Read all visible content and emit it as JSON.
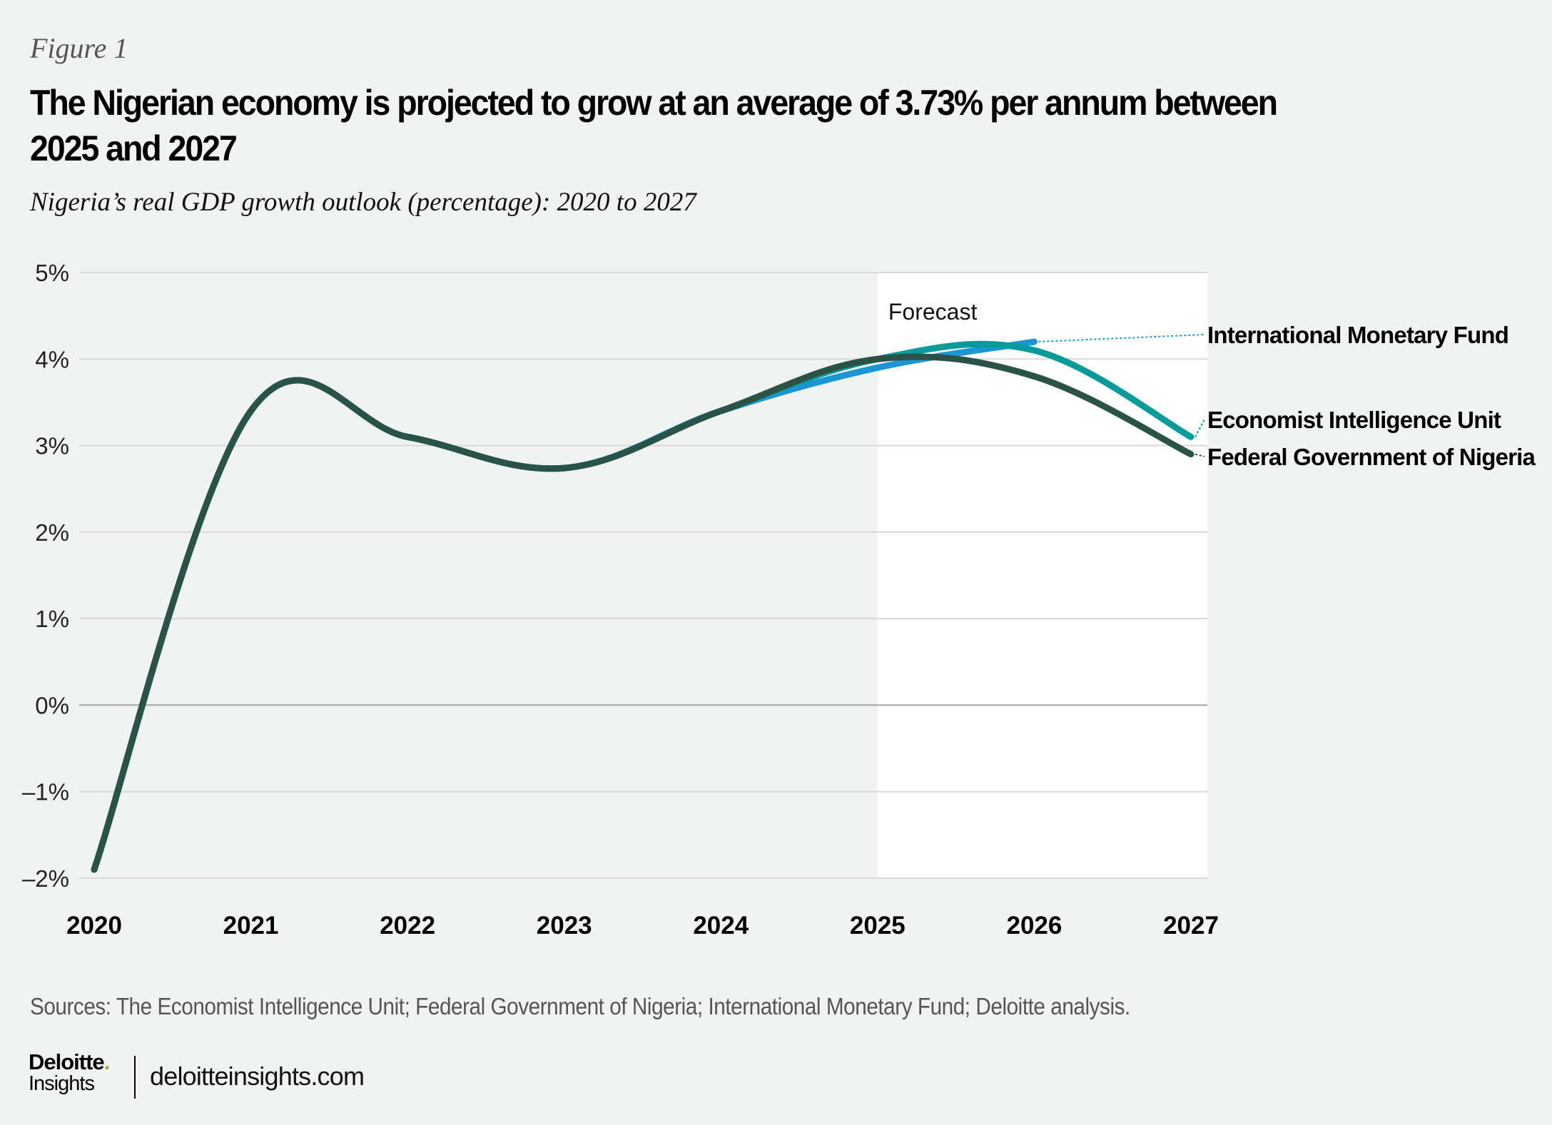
{
  "figure_label": "Figure 1",
  "title": "The Nigerian economy is projected to grow at an average of 3.73% per annum between 2025 and 2027",
  "subtitle": "Nigeria’s real GDP growth outlook (percentage): 2020 to 2027",
  "sources": "Sources: The Economist Intelligence Unit; Federal Government of Nigeria; International Monetary Fund; Deloitte analysis.",
  "brand": {
    "name": "Deloitte",
    "dot": ".",
    "sub": "Insights",
    "url": "deloitteinsights.com"
  },
  "colors": {
    "background": "#f1f3f2",
    "forecast_band": "#ffffff",
    "grid": "#d9d9d9",
    "zero_line": "#b3b3b3",
    "fgn": "#2a5246",
    "eiu": "#0b9a9a",
    "imf": "#1b95d3",
    "brand_dot": "#86bc25"
  },
  "chart_data": {
    "type": "line",
    "title": "The Nigerian economy is projected to grow at an average of 3.73% per annum between 2025 and 2027",
    "subtitle": "Nigeria’s real GDP growth outlook (percentage): 2020 to 2027",
    "xlabel": "",
    "ylabel": "",
    "x": [
      2020,
      2021,
      2022,
      2023,
      2024,
      2025,
      2026,
      2027
    ],
    "x_tick_labels": [
      "2020",
      "2021",
      "2022",
      "2023",
      "2024",
      "2025",
      "2026",
      "2027"
    ],
    "ylim": [
      -2,
      5
    ],
    "y_ticks": [
      5,
      4,
      3,
      2,
      1,
      0,
      -1,
      -2
    ],
    "y_tick_labels": [
      "5%",
      "4%",
      "3%",
      "2%",
      "1%",
      "0%",
      "–1%",
      "–2%"
    ],
    "grid": true,
    "forecast_region": {
      "label": "Forecast",
      "from": 2025,
      "to": 2027
    },
    "series": [
      {
        "name": "International Monetary Fund",
        "key": "imf",
        "values": [
          -1.9,
          3.4,
          3.1,
          2.74,
          3.4,
          3.9,
          4.2,
          null
        ]
      },
      {
        "name": "Economist Intelligence Unit",
        "key": "eiu",
        "values": [
          -1.9,
          3.4,
          3.1,
          2.74,
          3.4,
          4.0,
          4.1,
          3.1
        ]
      },
      {
        "name": "Federal Government of Nigeria",
        "key": "fgn",
        "values": [
          -1.9,
          3.4,
          3.1,
          2.74,
          3.4,
          4.0,
          3.8,
          2.9
        ]
      }
    ],
    "legend": "direct labels at right end of lines"
  }
}
